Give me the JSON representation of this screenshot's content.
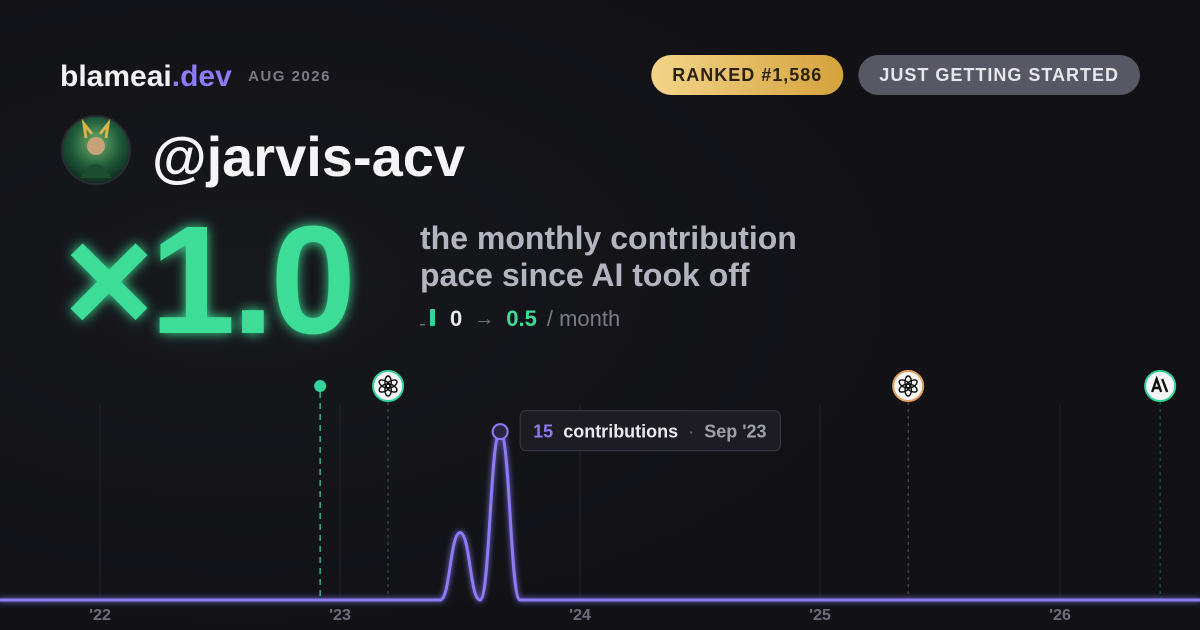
{
  "header": {
    "brand": "blameai",
    "brand_suffix": ".dev",
    "date": "AUG 2026",
    "rank_badge": "RANKED #1,586",
    "status_badge": "JUST GETTING STARTED"
  },
  "profile": {
    "handle": "@jarvis-acv"
  },
  "multiplier": {
    "value_label": "×1.0",
    "caption_lines": [
      "the monthly contribution",
      "pace since AI took off"
    ],
    "before": "0",
    "arrow": "→",
    "after": "0.5",
    "unit": "/ month"
  },
  "chart_data": {
    "type": "line",
    "x": [
      2021.583,
      2023.417,
      2023.5,
      2023.583,
      2023.667,
      2023.75,
      2026.583
    ],
    "series": [
      {
        "name": "contributions",
        "color": "#8b7cf6",
        "values": [
          0,
          0,
          6,
          0,
          15,
          0,
          0
        ]
      }
    ],
    "xlim": [
      2021.583,
      2026.583
    ],
    "ylim": [
      0,
      18
    ],
    "xticks": [
      {
        "value": 2022,
        "label": "'22"
      },
      {
        "value": 2023,
        "label": "'23"
      },
      {
        "value": 2024,
        "label": "'24"
      },
      {
        "value": 2025,
        "label": "'25"
      },
      {
        "value": 2026,
        "label": "'26"
      }
    ],
    "grid": true,
    "events": [
      {
        "x": 2022.917,
        "marker": "dot",
        "color": "#34d399"
      },
      {
        "x": 2023.2,
        "marker": "openai",
        "color": "#34d399"
      },
      {
        "x": 2025.367,
        "marker": "openai",
        "color": "#e0a060"
      },
      {
        "x": 2026.417,
        "marker": "anthropic",
        "color": "#34d399"
      }
    ],
    "tooltip": {
      "point": 4,
      "label": "contributions",
      "separator": "·",
      "date": "Sep '23"
    }
  }
}
